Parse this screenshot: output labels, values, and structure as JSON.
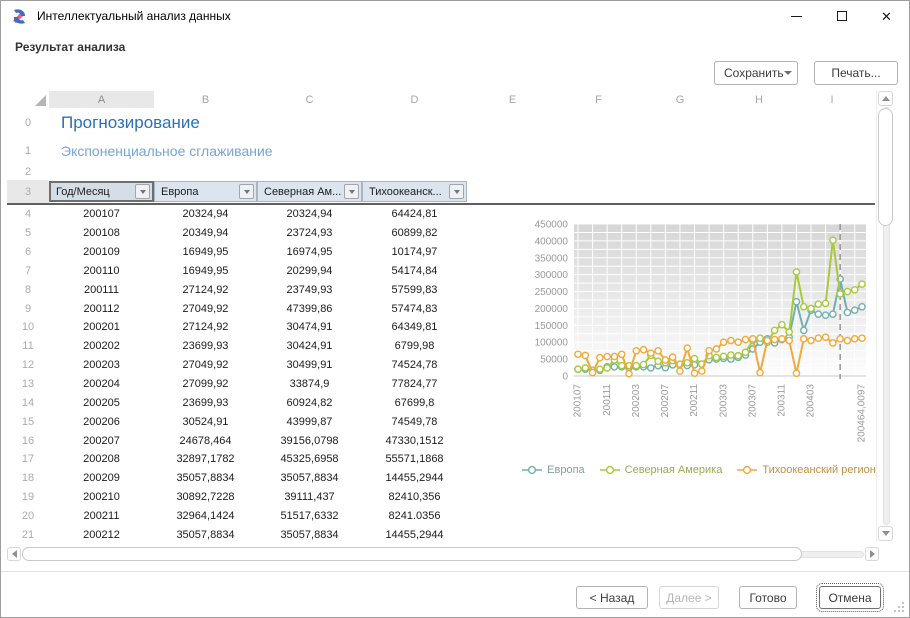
{
  "window": {
    "title": "Интеллектуальный анализ данных"
  },
  "header": {
    "subtitle": "Результат анализа"
  },
  "toolbar": {
    "save_label": "Сохранить",
    "print_label": "Печать..."
  },
  "sheet": {
    "columns": [
      "A",
      "B",
      "C",
      "D",
      "E",
      "F",
      "G",
      "H",
      "I"
    ],
    "gutter_numbers": [
      "0",
      "1",
      "2",
      "3"
    ],
    "title": "Прогнозирование",
    "subtitle": "Экспоненциальное сглаживание",
    "filter_headers": [
      "Год/Месяц",
      "Европа",
      "Северная Ам...",
      "Тихоокеанск..."
    ],
    "rows": [
      {
        "n": "4",
        "c": [
          "200107",
          "20324,94",
          "20324,94",
          "64424,81"
        ]
      },
      {
        "n": "5",
        "c": [
          "200108",
          "20349,94",
          "23724,93",
          "60899,82"
        ]
      },
      {
        "n": "6",
        "c": [
          "200109",
          "16949,95",
          "16974,95",
          "10174,97"
        ]
      },
      {
        "n": "7",
        "c": [
          "200110",
          "16949,95",
          "20299,94",
          "54174,84"
        ]
      },
      {
        "n": "8",
        "c": [
          "200111",
          "27124,92",
          "23749,93",
          "57599,83"
        ]
      },
      {
        "n": "9",
        "c": [
          "200112",
          "27049,92",
          "47399,86",
          "57474,83"
        ]
      },
      {
        "n": "10",
        "c": [
          "200201",
          "27124,92",
          "30474,91",
          "64349,81"
        ]
      },
      {
        "n": "11",
        "c": [
          "200202",
          "23699,93",
          "30424,91",
          "6799,98"
        ]
      },
      {
        "n": "12",
        "c": [
          "200203",
          "27049,92",
          "30499,91",
          "74524,78"
        ]
      },
      {
        "n": "13",
        "c": [
          "200204",
          "27099,92",
          "33874,9",
          "77824,77"
        ]
      },
      {
        "n": "14",
        "c": [
          "200205",
          "23699,93",
          "60924,82",
          "67699,8"
        ]
      },
      {
        "n": "15",
        "c": [
          "200206",
          "30524,91",
          "43999,87",
          "74549,78"
        ]
      },
      {
        "n": "16",
        "c": [
          "200207",
          "24678,464",
          "39156,0798",
          "47330,1512"
        ]
      },
      {
        "n": "17",
        "c": [
          "200208",
          "32897,1782",
          "45325,6958",
          "55571,1868"
        ]
      },
      {
        "n": "18",
        "c": [
          "200209",
          "35057,8834",
          "35057,8834",
          "14455,2944"
        ]
      },
      {
        "n": "19",
        "c": [
          "200210",
          "30892,7228",
          "39111,437",
          "82410,356"
        ]
      },
      {
        "n": "20",
        "c": [
          "200211",
          "32964,1424",
          "51517,6332",
          "8241.0356"
        ]
      },
      {
        "n": "21",
        "c": [
          "200212",
          "35057,8834",
          "35057,8834",
          "14455,2944"
        ]
      }
    ]
  },
  "chart_data": {
    "type": "line",
    "title": "",
    "ylim": [
      0,
      450000
    ],
    "ytick_step": 50000,
    "grid_step": 25000,
    "grid": true,
    "legend_position": "bottom",
    "forecast_line_index": 36,
    "x_ticks": [
      {
        "i": 0,
        "label": "200107"
      },
      {
        "i": 4,
        "label": "200111"
      },
      {
        "i": 8,
        "label": "200203"
      },
      {
        "i": 12,
        "label": "200207"
      },
      {
        "i": 16,
        "label": "200211"
      },
      {
        "i": 20,
        "label": "200303"
      },
      {
        "i": 24,
        "label": "200307"
      },
      {
        "i": 28,
        "label": "200311"
      },
      {
        "i": 32,
        "label": "200403"
      },
      {
        "i": 39,
        "label": "200464,0097"
      }
    ],
    "series": [
      {
        "name": "Европа",
        "color": "#72b0ae",
        "label_color": "#7fa29f",
        "values": [
          20325,
          20350,
          16950,
          16950,
          27125,
          27050,
          27125,
          23700,
          27050,
          27100,
          23700,
          30525,
          24678,
          32897,
          35058,
          30893,
          32964,
          35058,
          48000,
          50000,
          52000,
          50000,
          55000,
          62000,
          80000,
          100000,
          110000,
          98000,
          108000,
          115000,
          220000,
          135000,
          195000,
          183000,
          180000,
          183000,
          287000,
          188000,
          195000,
          205000
        ]
      },
      {
        "name": "Северная Америка",
        "color": "#a8c93e",
        "label_color": "#9aaa56",
        "values": [
          20325,
          23725,
          16975,
          20300,
          23750,
          47400,
          30475,
          30425,
          30500,
          33875,
          60925,
          44000,
          39156,
          45326,
          35058,
          39111,
          51518,
          35058,
          60000,
          55000,
          58000,
          62000,
          60000,
          70000,
          105000,
          112000,
          100000,
          135000,
          152000,
          130000,
          308000,
          205000,
          200000,
          213000,
          215000,
          402000,
          243000,
          250000,
          255000,
          272000
        ]
      },
      {
        "name": "Тихоокеанский регион",
        "color": "#f2a93b",
        "label_color": "#c18f45",
        "values": [
          64425,
          60900,
          10175,
          54175,
          57600,
          57475,
          64350,
          6800,
          74525,
          77825,
          67700,
          74550,
          47330,
          55571,
          14455,
          82410,
          8241,
          14455,
          75000,
          80000,
          100000,
          105000,
          100000,
          108000,
          110000,
          10000,
          105000,
          108000,
          110000,
          105000,
          8000,
          110000,
          105000,
          112000,
          115000,
          98000,
          110000,
          105000,
          110000,
          112000
        ]
      }
    ]
  },
  "footer": {
    "back": "< Назад",
    "next": "Далее >",
    "finish": "Готово",
    "cancel": "Отмена"
  }
}
